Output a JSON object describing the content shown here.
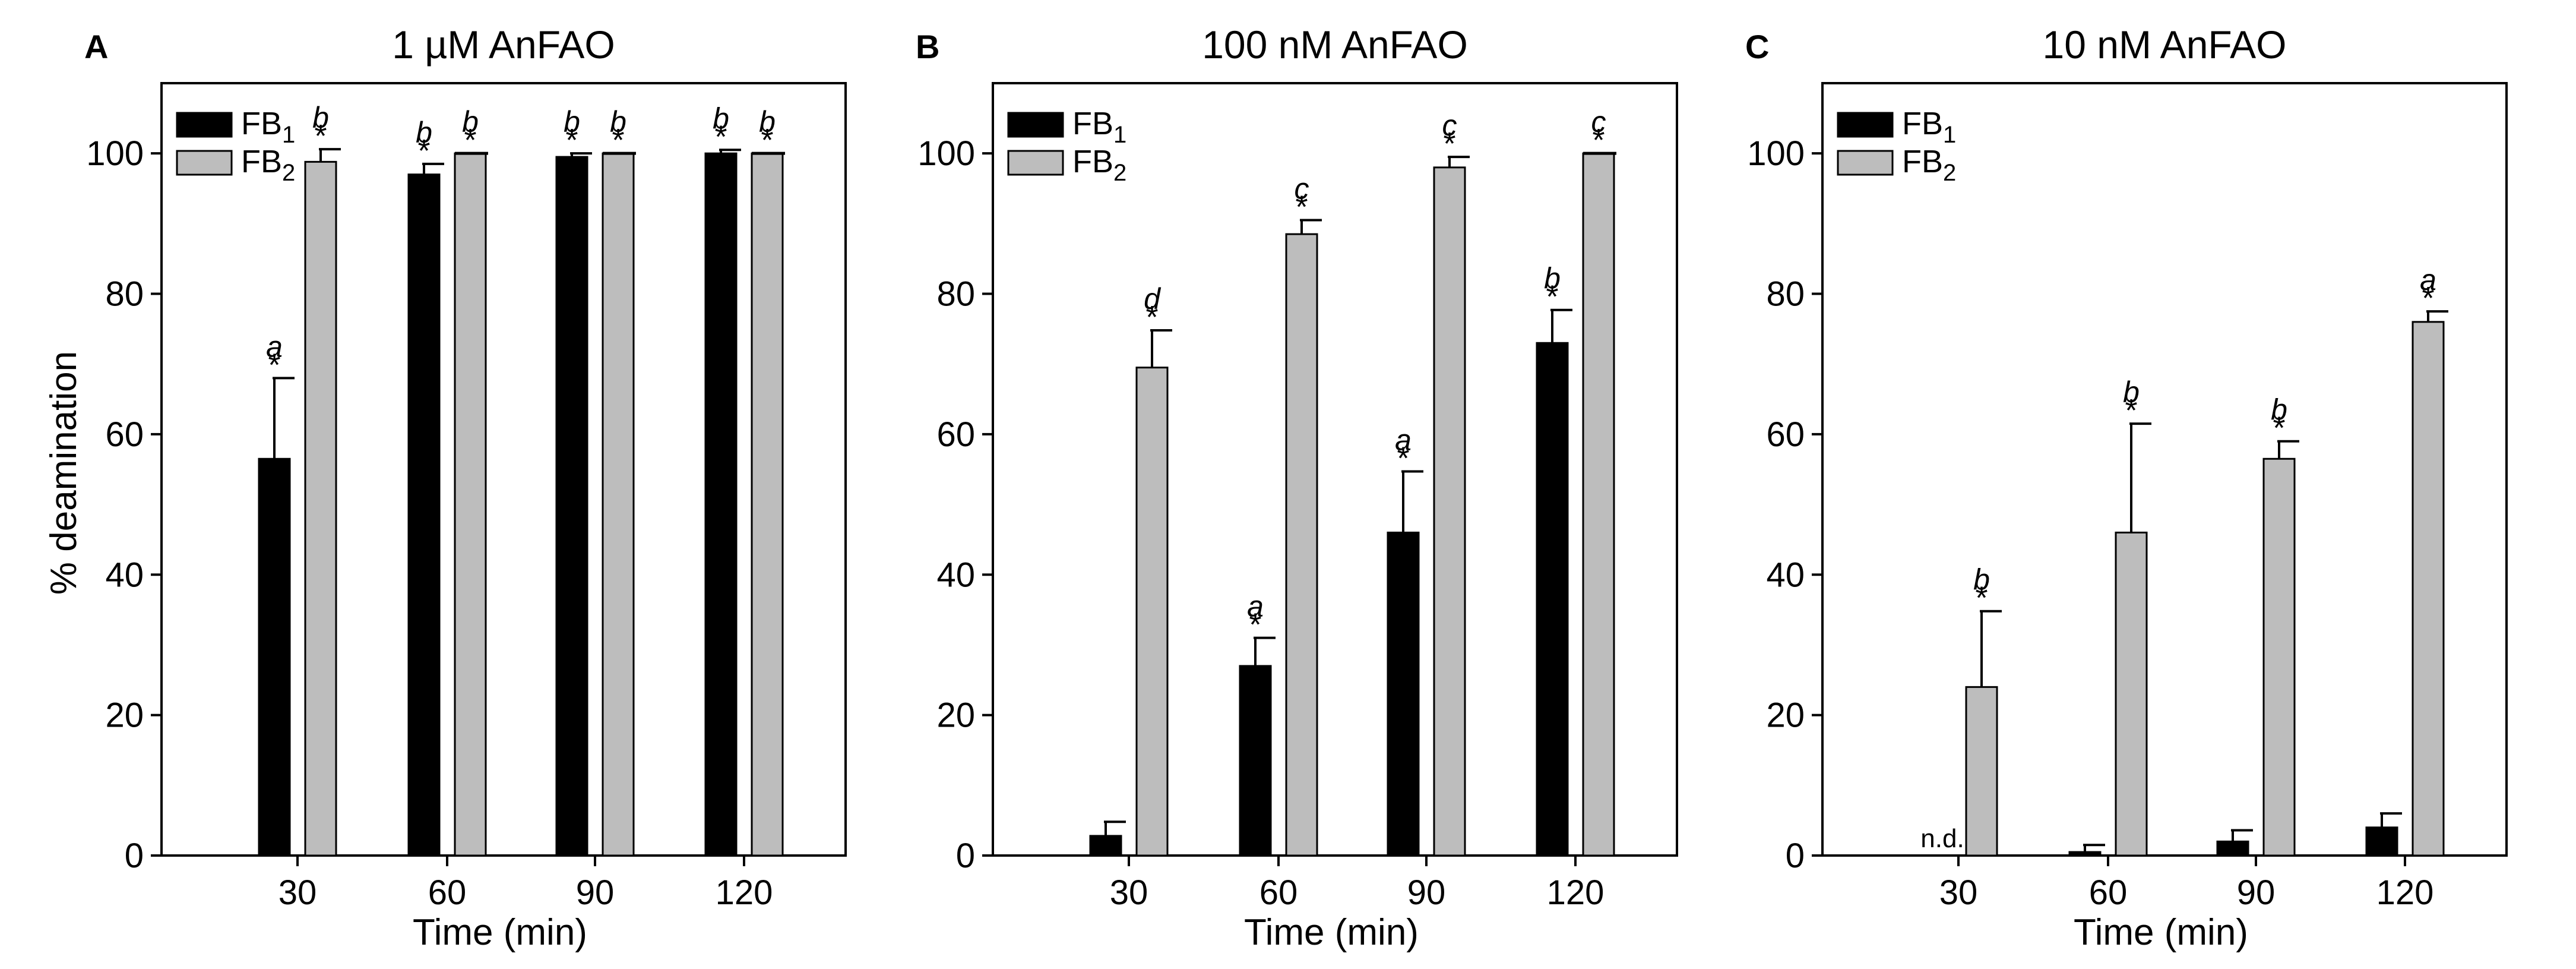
{
  "figure": {
    "ylabel": "% deamination",
    "xlabel": "Time (min)",
    "colors": {
      "FB1": "#000000",
      "FB2": "#bdbdbd",
      "axis": "#000000"
    }
  },
  "chart_data": [
    {
      "type": "bar",
      "panel": "A",
      "title": "1 µM AnFAO",
      "categories": [
        "30",
        "60",
        "90",
        "120"
      ],
      "xlabel": "Time (min)",
      "ylabel": "% deamination",
      "ylim": [
        0,
        110
      ],
      "yticks": [
        "0",
        "20",
        "40",
        "60",
        "80",
        "100"
      ],
      "legend": {
        "position": "top-left",
        "entries": [
          {
            "base": "FB",
            "sub": "1"
          },
          {
            "base": "FB",
            "sub": "2"
          }
        ]
      },
      "series": [
        {
          "name": "FB1",
          "values": [
            56.5,
            97,
            99.5,
            100
          ],
          "errors": [
            11.5,
            1.5,
            0.5,
            0.5
          ],
          "letters": [
            "a",
            "b",
            "b",
            "b"
          ],
          "stars": [
            "*",
            "*",
            "*",
            "*"
          ],
          "nd": [
            false,
            false,
            false,
            false
          ]
        },
        {
          "name": "FB2",
          "values": [
            98.8,
            100,
            100,
            100
          ],
          "errors": [
            1.8,
            0,
            0,
            0
          ],
          "letters": [
            "b",
            "b",
            "b",
            "b"
          ],
          "stars": [
            "*",
            "*",
            "*",
            "*"
          ],
          "nd": [
            false,
            false,
            false,
            false
          ]
        }
      ]
    },
    {
      "type": "bar",
      "panel": "B",
      "title": "100 nM AnFAO",
      "categories": [
        "30",
        "60",
        "90",
        "120"
      ],
      "xlabel": "Time (min)",
      "ylabel": "",
      "ylim": [
        0,
        110
      ],
      "yticks": [
        "0",
        "20",
        "40",
        "60",
        "80",
        "100"
      ],
      "legend": {
        "position": "top-left",
        "entries": [
          {
            "base": "FB",
            "sub": "1"
          },
          {
            "base": "FB",
            "sub": "2"
          }
        ]
      },
      "series": [
        {
          "name": "FB1",
          "values": [
            2.8,
            27,
            46,
            73
          ],
          "errors": [
            2,
            4,
            8.7,
            4.7
          ],
          "letters": [
            "",
            "a",
            "a",
            "b"
          ],
          "stars": [
            "",
            "*",
            "*",
            "*"
          ],
          "nd": [
            false,
            false,
            false,
            false
          ]
        },
        {
          "name": "FB2",
          "values": [
            69.5,
            88.5,
            98,
            100
          ],
          "errors": [
            5.3,
            2,
            1.5,
            0
          ],
          "letters": [
            "d",
            "c",
            "c",
            "c"
          ],
          "stars": [
            "*",
            "*",
            "*",
            "*"
          ],
          "nd": [
            false,
            false,
            false,
            false
          ]
        }
      ]
    },
    {
      "type": "bar",
      "panel": "C",
      "title": "10 nM AnFAO",
      "categories": [
        "30",
        "60",
        "90",
        "120"
      ],
      "xlabel": "Time (min)",
      "ylabel": "",
      "ylim": [
        0,
        110
      ],
      "yticks": [
        "0",
        "20",
        "40",
        "60",
        "80",
        "100"
      ],
      "legend": {
        "position": "top-left",
        "entries": [
          {
            "base": "FB",
            "sub": "1"
          },
          {
            "base": "FB",
            "sub": "2"
          }
        ]
      },
      "series": [
        {
          "name": "FB1",
          "values": [
            0,
            0.5,
            2,
            4
          ],
          "errors": [
            0,
            1,
            1.6,
            2
          ],
          "letters": [
            "",
            "",
            "",
            ""
          ],
          "stars": [
            "",
            "",
            "",
            ""
          ],
          "nd": [
            true,
            false,
            false,
            false
          ],
          "nd_label": "n.d."
        },
        {
          "name": "FB2",
          "values": [
            24,
            46,
            56.5,
            76
          ],
          "errors": [
            10.8,
            15.5,
            2.5,
            1.5
          ],
          "letters": [
            "b",
            "b",
            "b",
            "a"
          ],
          "stars": [
            "*",
            "*",
            "*",
            "*"
          ],
          "nd": [
            false,
            false,
            false,
            false
          ]
        }
      ]
    }
  ]
}
